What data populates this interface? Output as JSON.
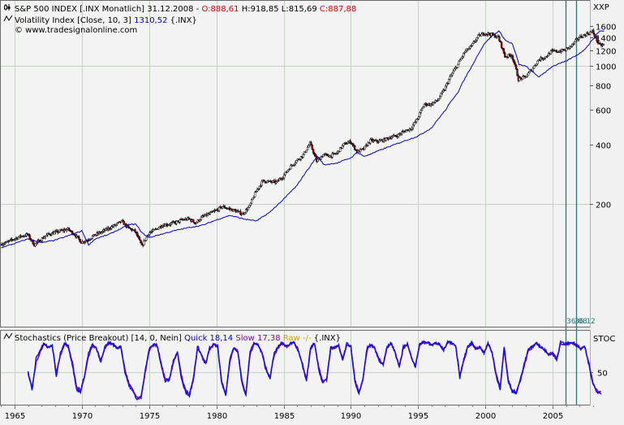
{
  "chart_data": [
    {
      "type": "candlestick",
      "legend_lines": [
        {
          "icon": "candle-icon",
          "parts": [
            {
              "text": "S&P 500 INDEX [.INX  Monatlich] 31.12.2008 - ",
              "color": "#000000"
            },
            {
              "text": "O:888,61",
              "color": "#d00000"
            },
            {
              "text": " H:918,85 L:815,69 ",
              "color": "#000000"
            },
            {
              "text": "C:887,88",
              "color": "#d00000"
            }
          ]
        },
        {
          "icon": "line-icon",
          "parts": [
            {
              "text": "Volatility Index [Close, 10, 3] ",
              "color": "#000000"
            },
            {
              "text": "1310,52",
              "color": "#0000cc"
            },
            {
              "text": " {.INX}",
              "color": "#000000"
            }
          ]
        },
        {
          "icon": "copyright-icon",
          "parts": [
            {
              "text": "© www.tradesignalonline.com",
              "color": "#000000"
            }
          ]
        }
      ],
      "y_axis_title": "XXP",
      "y_scale": "log",
      "ylim": [
        113,
        1780
      ],
      "yticks": [
        200,
        400,
        600,
        800,
        1000,
        1200,
        1400,
        1600
      ],
      "ytick_labels": [
        "200",
        "400",
        "600",
        "800",
        "1000",
        "1200",
        "1400",
        "1600"
      ],
      "marker_labels": [
        "36.08",
        "36.12"
      ],
      "series": [
        {
          "style": "candles",
          "x": [
            1964.0,
            1964.5,
            1965.0,
            1965.5,
            1966.0,
            1966.5,
            1967.0,
            1967.5,
            1968.0,
            1968.5,
            1969.0,
            1969.5,
            1970.0,
            1970.5,
            1971.0,
            1971.5,
            1972.0,
            1972.5,
            1973.0,
            1973.5,
            1974.0,
            1974.5,
            1975.0,
            1975.5,
            1976.0,
            1976.5,
            1977.0,
            1977.5,
            1978.0,
            1978.5,
            1979.0,
            1979.5,
            1980.0,
            1980.5,
            1981.0,
            1981.5,
            1982.0,
            1982.5,
            1983.0,
            1983.5,
            1984.0,
            1984.5,
            1985.0,
            1985.5,
            1986.0,
            1986.5,
            1987.0,
            1987.5,
            1988.0,
            1988.5,
            1989.0,
            1989.5,
            1990.0,
            1990.5,
            1991.0,
            1991.5,
            1992.0,
            1992.5,
            1993.0,
            1993.5,
            1994.0,
            1994.5,
            1995.0,
            1995.5,
            1996.0,
            1996.5,
            1997.0,
            1997.5,
            1998.0,
            1998.5,
            1999.0,
            1999.5,
            2000.0,
            2000.5,
            2001.0,
            2001.5,
            2002.0,
            2002.5,
            2003.0,
            2003.5,
            2004.0,
            2004.5,
            2005.0,
            2005.5,
            2006.0,
            2006.5,
            2007.0,
            2007.5,
            2008.0,
            2008.5
          ],
          "values": [
            125,
            128,
            133,
            137,
            140,
            124,
            132,
            140,
            143,
            146,
            149,
            140,
            128,
            132,
            139,
            144,
            150,
            156,
            163,
            151,
            145,
            122,
            142,
            148,
            156,
            158,
            161,
            166,
            168,
            160,
            172,
            178,
            185,
            194,
            189,
            184,
            178,
            194,
            232,
            262,
            259,
            258,
            276,
            306,
            332,
            354,
            405,
            330,
            356,
            350,
            362,
            400,
            415,
            368,
            380,
            420,
            415,
            423,
            437,
            445,
            468,
            482,
            542,
            642,
            640,
            672,
            763,
            900,
            1020,
            1180,
            1260,
            1420,
            1470,
            1450,
            1400,
            1120,
            1140,
            860,
            880,
            960,
            1080,
            1115,
            1190,
            1190,
            1210,
            1280,
            1400,
            1450,
            1500,
            1280
          ]
        },
        {
          "name": "Volatility Index",
          "style": "line",
          "x": [
            1964.0,
            1965.0,
            1966.0,
            1966.5,
            1967.0,
            1968.0,
            1969.0,
            1970.0,
            1970.5,
            1971.0,
            1972.0,
            1973.0,
            1973.5,
            1974.0,
            1974.5,
            1975.0,
            1976.0,
            1977.0,
            1978.0,
            1979.0,
            1980.0,
            1981.0,
            1982.0,
            1983.0,
            1984.0,
            1985.0,
            1986.0,
            1987.0,
            1987.5,
            1988.0,
            1989.0,
            1990.0,
            1990.5,
            1991.0,
            1992.0,
            1993.0,
            1994.0,
            1995.0,
            1996.0,
            1997.0,
            1998.0,
            1999.0,
            2000.0,
            2000.5,
            2001.0,
            2001.5,
            2002.0,
            2002.5,
            2003.0,
            2004.0,
            2005.0,
            2006.0,
            2007.0,
            2007.5,
            2008.0,
            2008.5
          ],
          "values": [
            120,
            126,
            133,
            130,
            127,
            131,
            138,
            146,
            124,
            133,
            140,
            151,
            157,
            158,
            142,
            135,
            141,
            147,
            152,
            156,
            166,
            175,
            168,
            164,
            182,
            211,
            248,
            312,
            350,
            316,
            323,
            343,
            366,
            348,
            371,
            394,
            418,
            442,
            486,
            594,
            745,
            1000,
            1320,
            1420,
            1510,
            1350,
            1300,
            1020,
            1000,
            880,
            1000,
            1060,
            1160,
            1240,
            1370,
            1510
          ]
        }
      ],
      "grid": true
    },
    {
      "type": "line",
      "legend_parts": [
        {
          "text": "Stochastics (Price Breakout) [14, 0, Nein] ",
          "color": "#000000"
        },
        {
          "text": "Quick 18,14",
          "color": "#0000cc"
        },
        {
          "text": " ",
          "color": "#000000"
        },
        {
          "text": "Slow 17,38",
          "color": "#7a0aa8"
        },
        {
          "text": " ",
          "color": "#000000"
        },
        {
          "text": "Raw -/-",
          "color": "#c8a000"
        },
        {
          "text": " {.INX}",
          "color": "#000000"
        }
      ],
      "y_axis_title": "STOC",
      "ylim": [
        0,
        100
      ],
      "yticks": [
        50
      ],
      "ytick_labels": [
        "50"
      ],
      "series": [
        {
          "name": "Quick",
          "x": [
            1966.0,
            1966.3,
            1966.6,
            1966.9,
            1967.2,
            1967.5,
            1967.8,
            1968.1,
            1968.4,
            1968.7,
            1969.0,
            1969.3,
            1969.6,
            1969.9,
            1970.2,
            1970.5,
            1970.8,
            1971.1,
            1971.4,
            1971.7,
            1972.0,
            1972.3,
            1972.6,
            1972.9,
            1973.2,
            1973.5,
            1973.8,
            1974.1,
            1974.4,
            1974.7,
            1975.0,
            1975.3,
            1975.6,
            1975.9,
            1976.2,
            1976.5,
            1976.8,
            1977.1,
            1977.4,
            1977.7,
            1978.0,
            1978.3,
            1978.6,
            1978.9,
            1979.2,
            1979.5,
            1979.8,
            1980.1,
            1980.4,
            1980.7,
            1981.0,
            1981.3,
            1981.6,
            1981.9,
            1982.2,
            1982.5,
            1982.8,
            1983.1,
            1983.4,
            1983.7,
            1984.0,
            1984.3,
            1984.6,
            1984.9,
            1985.2,
            1985.5,
            1985.8,
            1986.1,
            1986.4,
            1986.7,
            1987.0,
            1987.3,
            1987.6,
            1987.9,
            1988.2,
            1988.5,
            1988.8,
            1989.1,
            1989.4,
            1989.7,
            1990.0,
            1990.3,
            1990.6,
            1990.9,
            1991.2,
            1991.5,
            1991.8,
            1992.1,
            1992.4,
            1992.7,
            1993.0,
            1993.3,
            1993.6,
            1993.9,
            1994.2,
            1994.5,
            1994.8,
            1995.1,
            1995.4,
            1995.7,
            1996.0,
            1996.3,
            1996.6,
            1996.9,
            1997.2,
            1997.5,
            1997.8,
            1998.1,
            1998.4,
            1998.7,
            1999.0,
            1999.3,
            1999.6,
            1999.9,
            2000.2,
            2000.5,
            2000.8,
            2001.1,
            2001.4,
            2001.7,
            2002.0,
            2002.3,
            2002.6,
            2002.9,
            2003.2,
            2003.5,
            2003.8,
            2004.1,
            2004.4,
            2004.7,
            2005.0,
            2005.3,
            2005.6,
            2005.9,
            2006.2,
            2006.5,
            2006.8,
            2007.1,
            2007.4,
            2007.7,
            2008.0,
            2008.3,
            2008.6
          ],
          "values": [
            50,
            20,
            72,
            85,
            96,
            88,
            93,
            42,
            80,
            97,
            90,
            60,
            22,
            18,
            45,
            80,
            94,
            86,
            64,
            90,
            97,
            94,
            88,
            90,
            50,
            28,
            18,
            6,
            8,
            52,
            86,
            94,
            92,
            60,
            34,
            38,
            68,
            82,
            40,
            18,
            12,
            40,
            92,
            74,
            62,
            88,
            94,
            90,
            30,
            12,
            70,
            90,
            82,
            32,
            12,
            82,
            96,
            93,
            78,
            52,
            40,
            80,
            90,
            97,
            90,
            96,
            97,
            82,
            60,
            35,
            88,
            96,
            54,
            32,
            38,
            90,
            88,
            92,
            68,
            96,
            90,
            34,
            14,
            38,
            88,
            94,
            86,
            68,
            62,
            90,
            96,
            80,
            56,
            90,
            95,
            72,
            58,
            94,
            98,
            97,
            92,
            96,
            94,
            84,
            98,
            96,
            90,
            40,
            70,
            92,
            96,
            86,
            90,
            80,
            96,
            80,
            44,
            22,
            90,
            34,
            18,
            16,
            38,
            64,
            86,
            90,
            96,
            90,
            84,
            78,
            80,
            68,
            98,
            94,
            96,
            97,
            92,
            86,
            90,
            60,
            30,
            18,
            16
          ]
        },
        {
          "name": "Slow",
          "x": [
            1966.0,
            1966.3,
            1966.6,
            1966.9,
            1967.2,
            1967.5,
            1967.8,
            1968.1,
            1968.4,
            1968.7,
            1969.0,
            1969.3,
            1969.6,
            1969.9,
            1970.2,
            1970.5,
            1970.8,
            1971.1,
            1971.4,
            1971.7,
            1972.0,
            1972.3,
            1972.6,
            1972.9,
            1973.2,
            1973.5,
            1973.8,
            1974.1,
            1974.4,
            1974.7,
            1975.0,
            1975.3,
            1975.6,
            1975.9,
            1976.2,
            1976.5,
            1976.8,
            1977.1,
            1977.4,
            1977.7,
            1978.0,
            1978.3,
            1978.6,
            1978.9,
            1979.2,
            1979.5,
            1979.8,
            1980.1,
            1980.4,
            1980.7,
            1981.0,
            1981.3,
            1981.6,
            1981.9,
            1982.2,
            1982.5,
            1982.8,
            1983.1,
            1983.4,
            1983.7,
            1984.0,
            1984.3,
            1984.6,
            1984.9,
            1985.2,
            1985.5,
            1985.8,
            1986.1,
            1986.4,
            1986.7,
            1987.0,
            1987.3,
            1987.6,
            1987.9,
            1988.2,
            1988.5,
            1988.8,
            1989.1,
            1989.4,
            1989.7,
            1990.0,
            1990.3,
            1990.6,
            1990.9,
            1991.2,
            1991.5,
            1991.8,
            1992.1,
            1992.4,
            1992.7,
            1993.0,
            1993.3,
            1993.6,
            1993.9,
            1994.2,
            1994.5,
            1994.8,
            1995.1,
            1995.4,
            1995.7,
            1996.0,
            1996.3,
            1996.6,
            1996.9,
            1997.2,
            1997.5,
            1997.8,
            1998.1,
            1998.4,
            1998.7,
            1999.0,
            1999.3,
            1999.6,
            1999.9,
            2000.2,
            2000.5,
            2000.8,
            2001.1,
            2001.4,
            2001.7,
            2002.0,
            2002.3,
            2002.6,
            2002.9,
            2003.2,
            2003.5,
            2003.8,
            2004.1,
            2004.4,
            2004.7,
            2005.0,
            2005.3,
            2005.6,
            2005.9,
            2006.2,
            2006.5,
            2006.8,
            2007.1,
            2007.4,
            2007.7,
            2008.0,
            2008.3,
            2008.6
          ],
          "values": [
            48,
            24,
            66,
            82,
            94,
            89,
            92,
            48,
            76,
            95,
            91,
            64,
            26,
            20,
            42,
            76,
            92,
            87,
            67,
            88,
            96,
            94,
            89,
            90,
            54,
            31,
            20,
            8,
            9,
            48,
            82,
            93,
            92,
            63,
            37,
            37,
            65,
            81,
            44,
            21,
            14,
            37,
            88,
            76,
            63,
            86,
            93,
            90,
            34,
            15,
            66,
            88,
            83,
            36,
            14,
            78,
            95,
            93,
            80,
            55,
            42,
            77,
            89,
            96,
            90,
            95,
            97,
            84,
            63,
            38,
            85,
            95,
            58,
            35,
            37,
            87,
            88,
            91,
            70,
            94,
            90,
            38,
            17,
            36,
            85,
            93,
            87,
            70,
            63,
            88,
            95,
            81,
            58,
            88,
            94,
            74,
            59,
            92,
            97,
            97,
            93,
            95,
            94,
            85,
            97,
            96,
            91,
            44,
            68,
            90,
            95,
            87,
            89,
            81,
            95,
            81,
            47,
            25,
            86,
            37,
            20,
            17,
            36,
            61,
            83,
            89,
            95,
            90,
            85,
            79,
            80,
            70,
            96,
            94,
            95,
            96,
            92,
            87,
            89,
            63,
            33,
            20,
            17
          ]
        }
      ],
      "grid": true
    }
  ],
  "x_axis": {
    "xlim": [
      1964.0,
      2008.85
    ],
    "ticks": [
      1965,
      1970,
      1975,
      1980,
      1985,
      1990,
      1995,
      2000,
      2005
    ],
    "tick_labels": [
      "1965",
      "1970",
      "1975",
      "1980",
      "1985",
      "1990",
      "1995",
      "2000",
      "2005"
    ]
  },
  "colors": {
    "background": "#f1f1f1",
    "grid": "#c3d2c3",
    "candle": "#000000",
    "candle_down_accent": "#b00000",
    "volatility_line": "#0000cc",
    "quick": "#1010e0",
    "slow": "#7a0aa8",
    "marker": "#2b7a78"
  }
}
